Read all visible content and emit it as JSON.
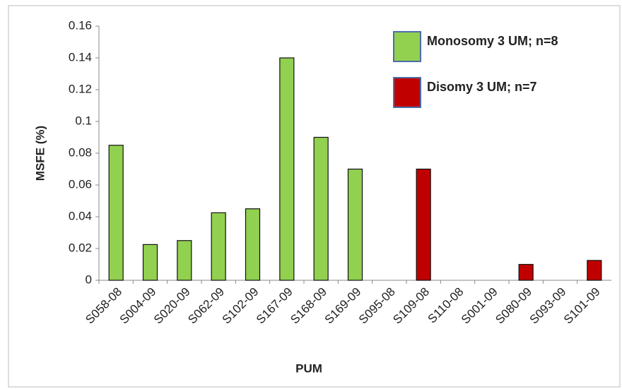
{
  "chart_data": {
    "type": "bar",
    "x_label": "PUM",
    "y_label": "MSFE (%)",
    "categories": [
      "S058-08",
      "S004-09",
      "S020-09",
      "S062-09",
      "S102-09",
      "S167-09",
      "S168-09",
      "S169-09",
      "S095-08",
      "S109-08",
      "S110-08",
      "S001-09",
      "S080-09",
      "S093-09",
      "S101-09"
    ],
    "series": [
      {
        "name": "Monosomy 3 UM; n=8",
        "color": "#92d050",
        "values": [
          0.085,
          0.0225,
          0.025,
          0.0425,
          0.045,
          0.14,
          0.09,
          0.07,
          null,
          null,
          null,
          null,
          null,
          null,
          null
        ]
      },
      {
        "name": "Disomy 3 UM; n=7",
        "color": "#c00000",
        "values": [
          null,
          null,
          null,
          null,
          null,
          null,
          null,
          null,
          0,
          0.07,
          0,
          0,
          0.01,
          0,
          0.0125
        ]
      }
    ],
    "ylim": [
      0,
      0.16
    ],
    "yticks": [
      0,
      0.02,
      0.04,
      0.06,
      0.08,
      0.1,
      0.12,
      0.14,
      0.16
    ]
  }
}
